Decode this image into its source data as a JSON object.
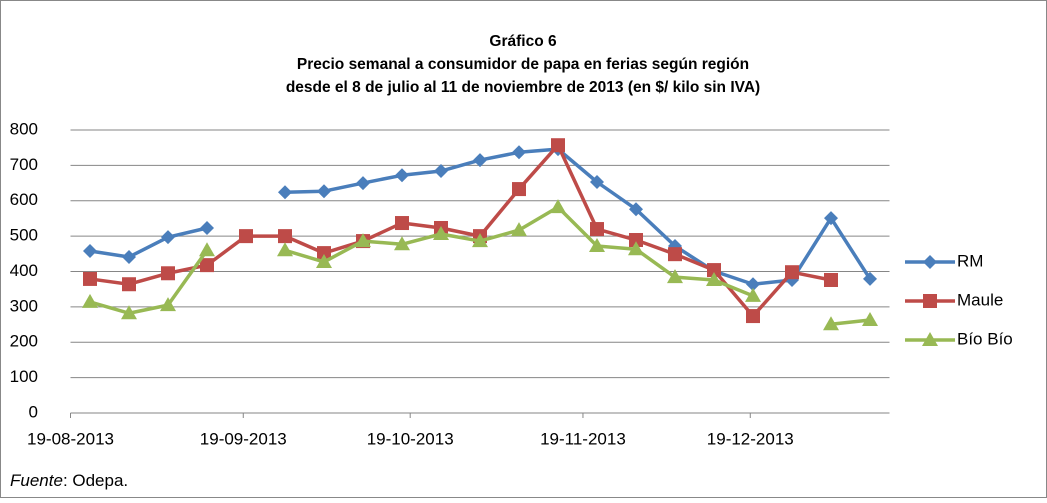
{
  "chart_data": {
    "type": "line",
    "title": "Gráfico 6",
    "subtitle": [
      "Precio semanal a consumidor de papa en ferias según región",
      "desde el 8 de julio al 11 de noviembre de 2013 (en $/ kilo sin IVA)"
    ],
    "x": [
      0,
      1,
      2,
      3,
      4,
      5,
      6,
      7,
      8,
      9,
      10,
      11,
      12,
      13,
      14,
      15,
      16,
      17,
      18,
      19,
      20
    ],
    "xlim": [
      -0.5,
      20.5
    ],
    "xticks": [
      {
        "value": -0.5,
        "label": "19-08-2013"
      },
      {
        "value": 3.93,
        "label": "19-09-2013"
      },
      {
        "value": 8.21,
        "label": "19-10-2013"
      },
      {
        "value": 12.64,
        "label": "19-11-2013"
      },
      {
        "value": 16.93,
        "label": "19-12-2013"
      }
    ],
    "ylim": [
      0,
      800
    ],
    "yticks": [
      0,
      100,
      200,
      300,
      400,
      500,
      600,
      700,
      800
    ],
    "grid": true,
    "legend": "right",
    "series": [
      {
        "name": "RM",
        "color": "#4a7ebb",
        "marker": "diamond",
        "values": [
          458,
          441,
          497,
          523,
          null,
          624,
          627,
          650,
          672,
          684,
          715,
          737,
          746,
          653,
          576,
          472,
          401,
          364,
          376,
          551,
          379
        ]
      },
      {
        "name": "Maule",
        "color": "#be4b48",
        "marker": "square",
        "values": [
          379,
          364,
          395,
          418,
          500,
          500,
          452,
          486,
          537,
          523,
          500,
          633,
          757,
          520,
          489,
          449,
          404,
          274,
          398,
          376,
          null
        ]
      },
      {
        "name": "Bío Bío",
        "color": "#98b954",
        "marker": "triangle",
        "values": [
          314,
          282,
          305,
          460,
          null,
          460,
          427,
          486,
          477,
          506,
          486,
          517,
          582,
          472,
          463,
          384,
          376,
          331,
          null,
          251,
          263
        ]
      }
    ],
    "source_label": "Fuente",
    "source_text": ": Odepa."
  }
}
